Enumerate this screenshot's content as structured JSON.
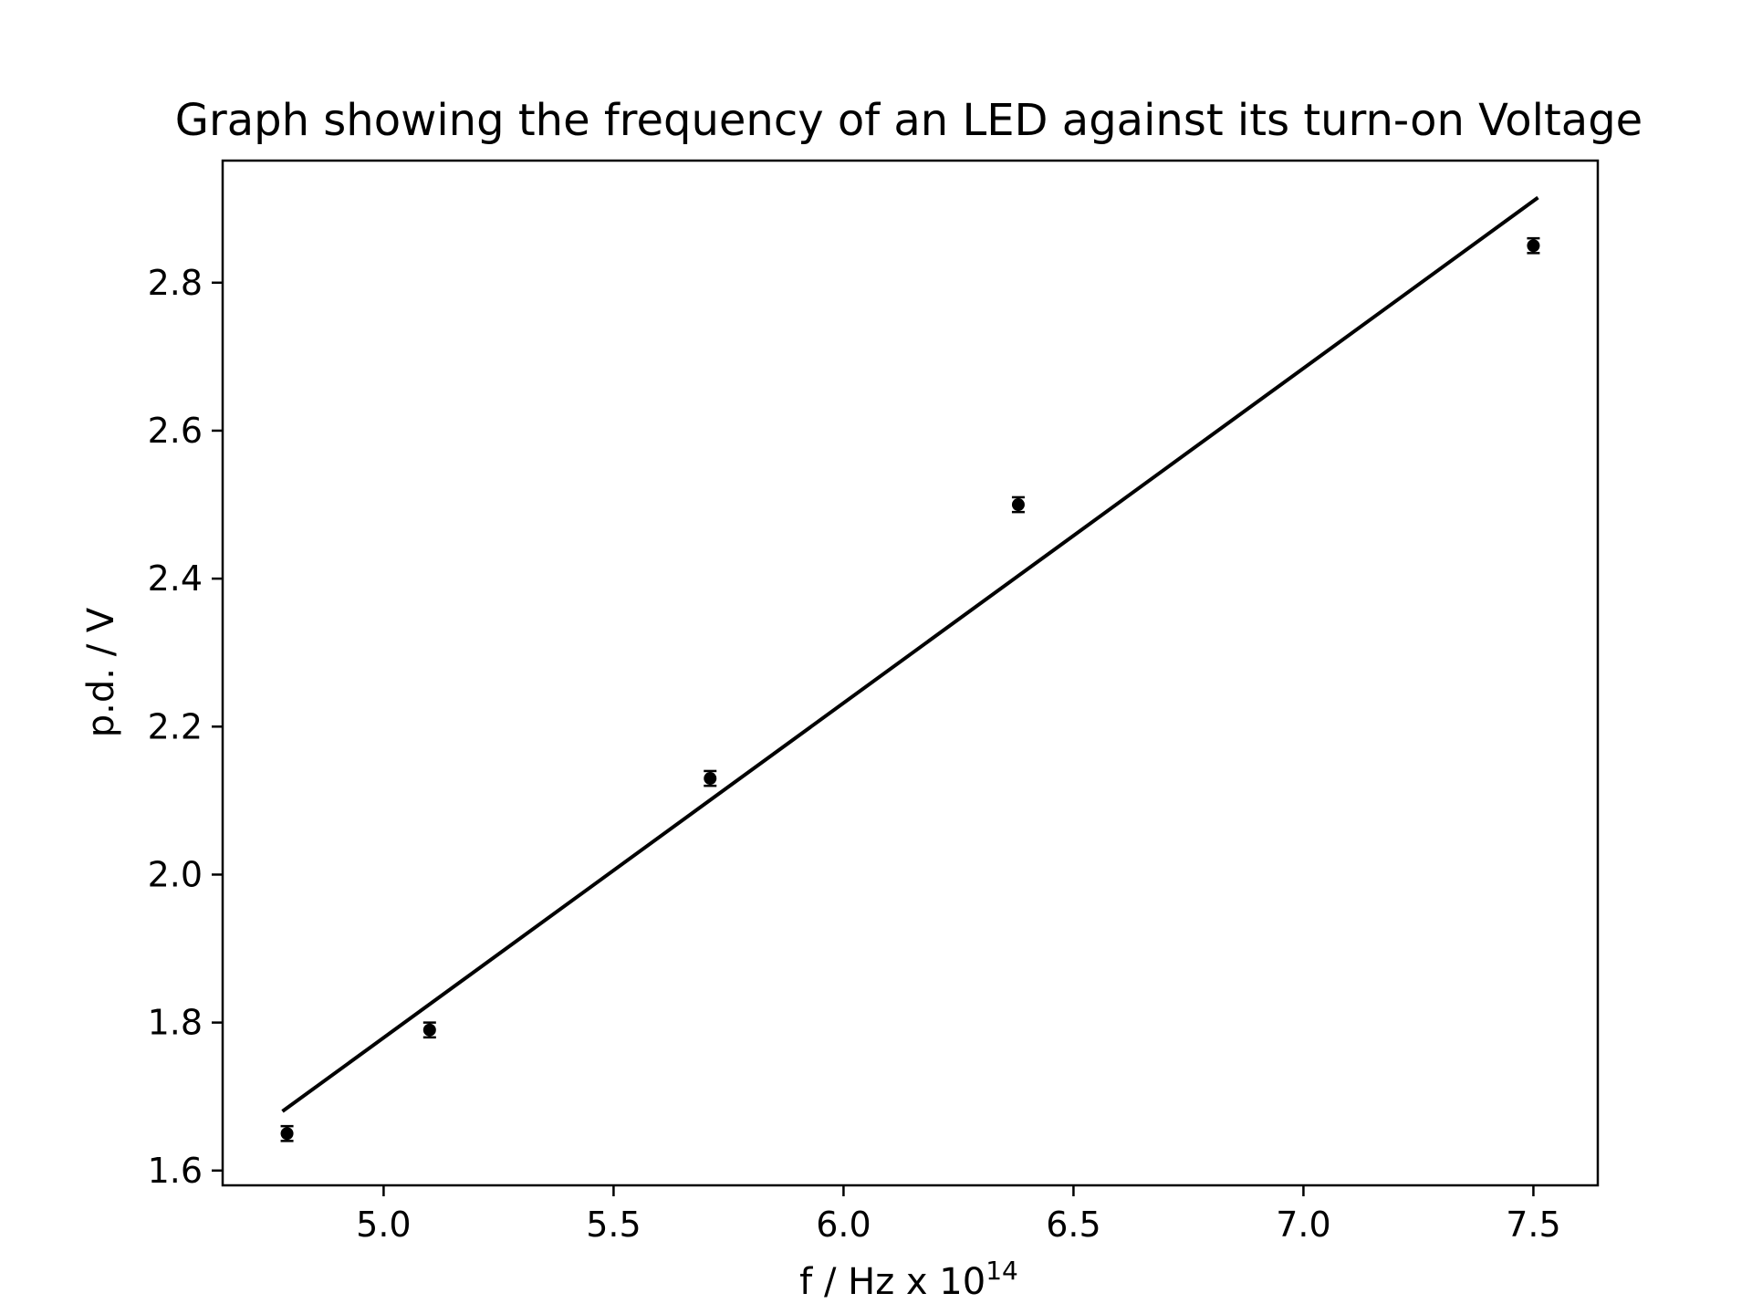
{
  "chart_data": {
    "type": "scatter",
    "title": "Graph showing the frequency of an LED against its turn-on Voltage",
    "xlabel": "f / Hz x 10",
    "xlabel_superscript": "14",
    "ylabel": "p.d. / V",
    "xlim": [
      4.65,
      7.64
    ],
    "ylim": [
      1.58,
      2.965
    ],
    "x_ticks": [
      "5.0",
      "5.5",
      "6.0",
      "6.5",
      "7.0",
      "7.5"
    ],
    "y_ticks": [
      "1.6",
      "1.8",
      "2.0",
      "2.2",
      "2.4",
      "2.6",
      "2.8"
    ],
    "grid": false,
    "legend": "none",
    "series": [
      {
        "type": "scatter",
        "color": "#000000",
        "x": [
          4.79,
          5.1,
          5.71,
          6.38,
          7.5
        ],
        "y": [
          1.65,
          1.79,
          2.13,
          2.5,
          2.85
        ],
        "y_error": [
          0.01,
          0.01,
          0.01,
          0.01,
          0.01
        ]
      },
      {
        "type": "line",
        "color": "#000000",
        "x": [
          4.78,
          7.51
        ],
        "y": [
          1.68,
          2.915
        ]
      }
    ]
  }
}
